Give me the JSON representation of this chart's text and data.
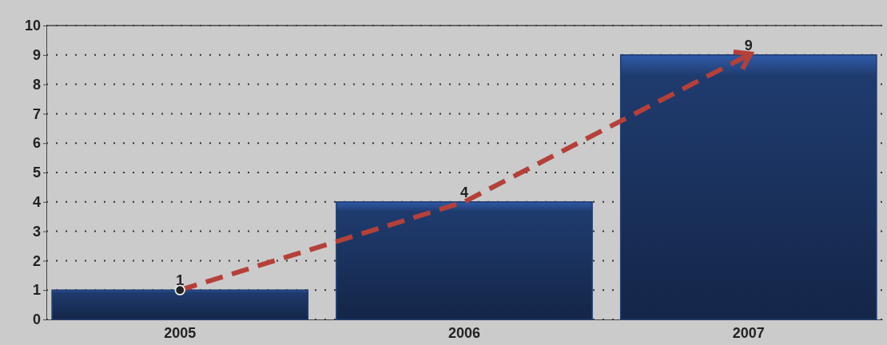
{
  "chart_data": {
    "type": "bar",
    "categories": [
      "2005",
      "2006",
      "2007"
    ],
    "series": [
      {
        "color": "#1f3b6e",
        "values": [
          1,
          4,
          9
        ],
        "value_labels": [
          "1",
          "4",
          "9"
        ]
      },
      {
        "type": "line",
        "color": "#b5403a",
        "values": [
          1,
          4,
          9
        ],
        "line_style": "dashed"
      }
    ],
    "ylim": [
      0,
      10
    ],
    "yticks": [
      0,
      1,
      2,
      3,
      4,
      5,
      6,
      7,
      8,
      9,
      10
    ],
    "grid": "y"
  }
}
